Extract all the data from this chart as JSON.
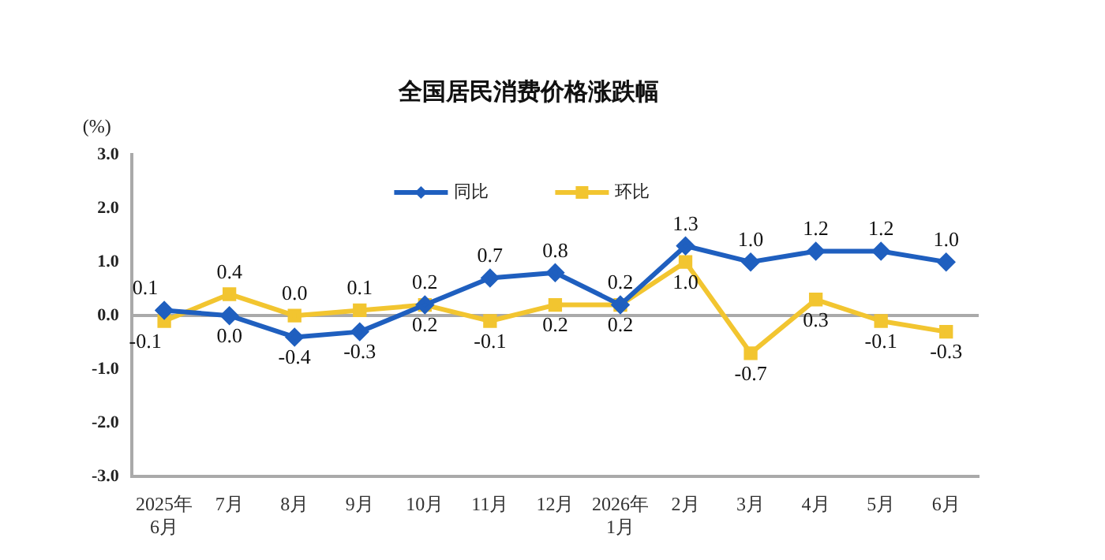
{
  "chart_data": {
    "type": "line",
    "title": "全国居民消费价格涨跌幅",
    "ylabel": "(%)",
    "categories": [
      "2025年\n6月",
      "7月",
      "8月",
      "9月",
      "10月",
      "11月",
      "12月",
      "2026年\n1月",
      "2月",
      "3月",
      "4月",
      "5月",
      "6月"
    ],
    "series": [
      {
        "name": "同比",
        "color": "#1f5fbf",
        "marker": "diamond",
        "values": [
          0.1,
          0.0,
          -0.4,
          -0.3,
          0.2,
          0.7,
          0.8,
          0.2,
          1.3,
          1.0,
          1.2,
          1.2,
          1.0
        ],
        "value_labels": [
          "0.1",
          "0.0",
          "-0.4",
          "-0.3",
          "0.2",
          "0.7",
          "0.8",
          "0.2",
          "1.3",
          "1.0",
          "1.2",
          "1.2",
          "1.0"
        ]
      },
      {
        "name": "环比",
        "color": "#f2c530",
        "marker": "square",
        "values": [
          -0.1,
          0.4,
          0.0,
          0.1,
          0.2,
          -0.1,
          0.2,
          0.2,
          1.0,
          -0.7,
          0.3,
          -0.1,
          -0.3
        ],
        "value_labels": [
          "-0.1",
          "0.4",
          "0.0",
          "0.1",
          "0.2",
          "-0.1",
          "0.2",
          "0.2",
          "1.0",
          "-0.7",
          "0.3",
          "-0.1",
          "-0.3"
        ]
      }
    ],
    "ylim": [
      -3.0,
      3.0
    ],
    "yticks": [
      {
        "value": -3,
        "label": "-3.0"
      },
      {
        "value": -2,
        "label": "-2.0"
      },
      {
        "value": -1,
        "label": "-1.0"
      },
      {
        "value": 0,
        "label": "0.0"
      },
      {
        "value": 1,
        "label": "1.0"
      },
      {
        "value": 2,
        "label": "2.0"
      },
      {
        "value": 3,
        "label": "3.0"
      }
    ],
    "legend": "top",
    "line_style": "solid"
  }
}
